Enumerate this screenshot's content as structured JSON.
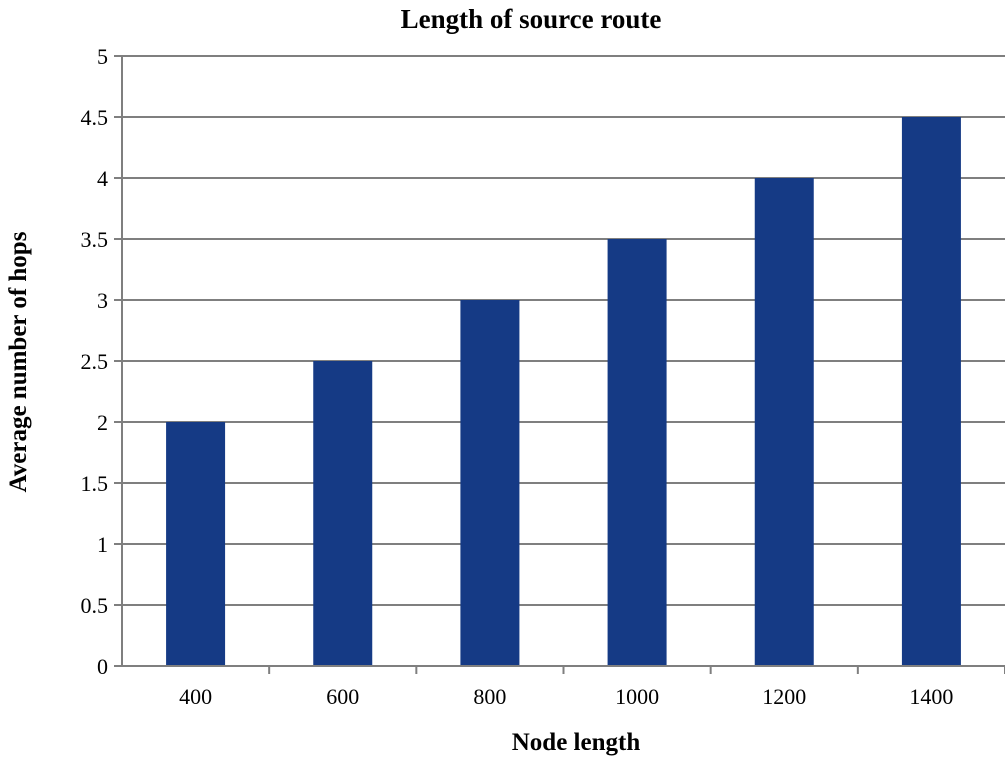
{
  "chart_data": {
    "type": "bar",
    "title": "Length of source route",
    "xlabel": "Node length",
    "ylabel": "Average number of hops",
    "categories": [
      "400",
      "600",
      "800",
      "1000",
      "1200",
      "1400"
    ],
    "values": [
      2,
      2.5,
      3,
      3.5,
      4,
      4.5
    ],
    "ylim": [
      0,
      5
    ],
    "yticks": [
      "0",
      "0.5",
      "1",
      "1.5",
      "2",
      "2.5",
      "3",
      "3.5",
      "4",
      "4.5",
      "5"
    ],
    "grid": true,
    "legend": "none",
    "bar_color": "#153a85"
  }
}
